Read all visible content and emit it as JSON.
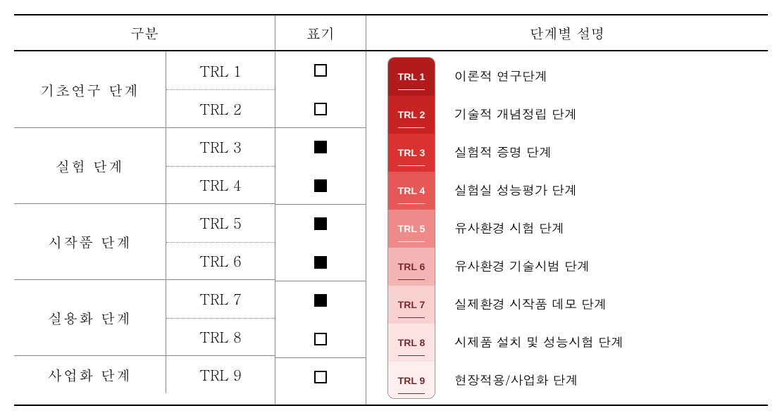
{
  "headers": {
    "category": "구분",
    "mark": "표기",
    "description": "단계별 설명"
  },
  "phases": [
    {
      "name": "기초연구 단계",
      "trls": [
        "TRL 1",
        "TRL 2"
      ]
    },
    {
      "name": "실험 단계",
      "trls": [
        "TRL 3",
        "TRL 4"
      ]
    },
    {
      "name": "시작품 단계",
      "trls": [
        "TRL 5",
        "TRL 6"
      ]
    },
    {
      "name": "실용화 단계",
      "trls": [
        "TRL 7",
        "TRL 8"
      ]
    },
    {
      "name": "사업화 단계",
      "trls": [
        "TRL 9"
      ]
    }
  ],
  "marks": [
    {
      "level": "TRL 1",
      "filled": false
    },
    {
      "level": "TRL 2",
      "filled": false
    },
    {
      "level": "TRL 3",
      "filled": true
    },
    {
      "level": "TRL 4",
      "filled": true
    },
    {
      "level": "TRL 5",
      "filled": true
    },
    {
      "level": "TRL 6",
      "filled": true
    },
    {
      "level": "TRL 7",
      "filled": true
    },
    {
      "level": "TRL 8",
      "filled": false
    },
    {
      "level": "TRL 9",
      "filled": false
    }
  ],
  "descriptions": [
    {
      "label": "TRL 1",
      "text": "이론적 연구단계"
    },
    {
      "label": "TRL 2",
      "text": "기술적 개념정립 단계"
    },
    {
      "label": "TRL 3",
      "text": "실험적 증명 단계"
    },
    {
      "label": "TRL 4",
      "text": "실험실 성능평가 단계"
    },
    {
      "label": "TRL 5",
      "text": "유사환경 시험 단계"
    },
    {
      "label": "TRL 6",
      "text": "유사환경 기술시범 단계"
    },
    {
      "label": "TRL 7",
      "text": "실제환경 시작품 데모 단계"
    },
    {
      "label": "TRL 8",
      "text": "시제품 설치 및 성능시험 단계"
    },
    {
      "label": "TRL 9",
      "text": "현장적용/사업화 단계"
    }
  ],
  "thermometer": {
    "colors": [
      "#b11b1b",
      "#c82323",
      "#da3131",
      "#e65757",
      "#ef8a8a",
      "#f5b4b4",
      "#f9d0d0",
      "#fce2e2",
      "#fdefef"
    ],
    "text_colors": [
      "#ffffff",
      "#ffffff",
      "#ffffff",
      "#ffffff",
      "#ffffff",
      "#7a2a2a",
      "#7a2a2a",
      "#7a2a2a",
      "#7a2a2a"
    ]
  }
}
